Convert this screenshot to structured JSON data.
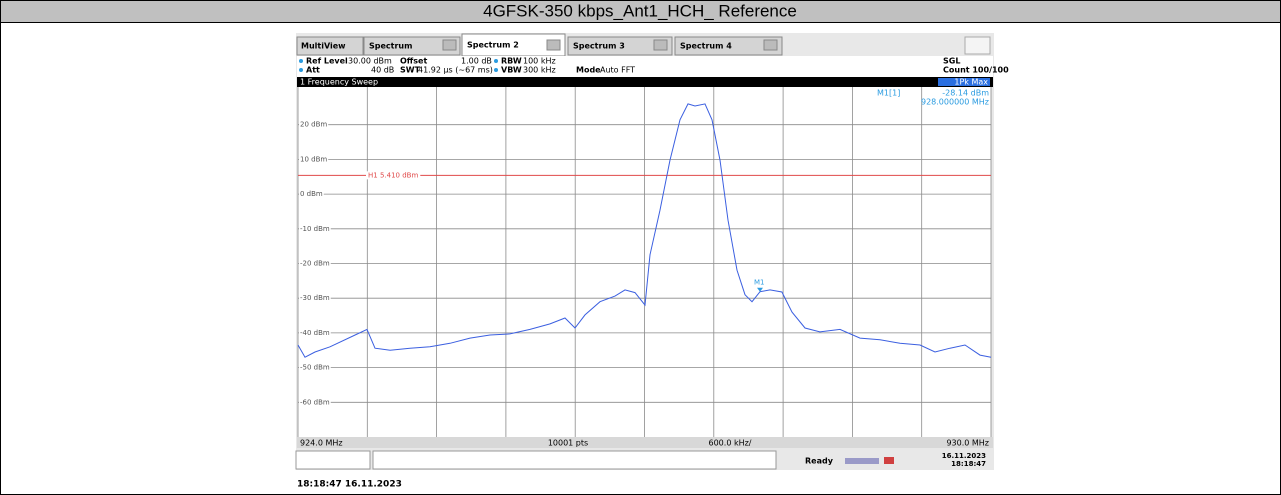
{
  "header": {
    "title": "4GFSK-350 kbps_Ant1_HCH_ Reference"
  },
  "tabs": [
    "MultiView",
    "Spectrum",
    "Spectrum 2",
    "Spectrum 3",
    "Spectrum 4"
  ],
  "settings": {
    "ref_level_label": "Ref Level",
    "ref_level": "30.00 dBm",
    "offset_label": "Offset",
    "offset": "1.00 dB",
    "rbw_label": "RBW",
    "rbw": "100 kHz",
    "sweep_mode": "SGL",
    "att_label": "Att",
    "att": "40 dB",
    "swt_label": "SWT",
    "swt": "41.92 µs (~67 ms)",
    "vbw_label": "VBW",
    "vbw": "300 kHz",
    "mode_label": "Mode",
    "mode": "Auto FFT",
    "count": "Count 100/100"
  },
  "window_title": "1 Frequency Sweep",
  "trace_label": "1Pk Max",
  "footer": {
    "points": "10001 pts",
    "span_per_div": "600.0 kHz/"
  },
  "status": {
    "state": "Ready",
    "date": "16.11.2023",
    "time": "18:18:47"
  },
  "timestamp": "18:18:47  16.11.2023",
  "chart_data": {
    "type": "line",
    "xlim": [
      924,
      930
    ],
    "ylim": [
      -70,
      30
    ],
    "xticks": [
      {
        "value": 924,
        "label": "924.0 MHz"
      },
      924.6,
      925.2,
      925.8,
      926.4,
      927,
      927.6,
      928.2,
      928.8,
      929.4,
      {
        "value": 930,
        "label": "930.0 MHz"
      }
    ],
    "yticks": [
      {
        "value": 20,
        "label": "20 dBm"
      },
      {
        "value": 10,
        "label": "10 dBm"
      },
      {
        "value": 0,
        "label": "0 dBm"
      },
      {
        "value": -10,
        "label": "-10 dBm"
      },
      {
        "value": -20,
        "label": "-20 dBm"
      },
      {
        "value": -30,
        "label": "-30 dBm"
      },
      {
        "value": -40,
        "label": "-40 dBm"
      },
      {
        "value": -50,
        "label": "-50 dBm"
      },
      {
        "value": -60,
        "label": "-60 dBm"
      }
    ],
    "grid": true,
    "threshold": {
      "label": "H1 5.410 dBm",
      "value": 5.41,
      "color": "#e04a4a"
    },
    "marker": {
      "name": "M1",
      "readout_name": "M1[1]",
      "x": 928,
      "y": -28.14,
      "x_label": "928.000000 MHz",
      "y_label": "-28.14 dBm",
      "color": "#2a9be0"
    },
    "series": [
      {
        "name": "1Pk Max",
        "color": "#3b5fe0",
        "x": [
          924.0,
          924.061,
          924.147,
          924.277,
          924.494,
          924.597,
          924.667,
          924.797,
          924.97,
          925.143,
          925.316,
          925.489,
          925.662,
          925.835,
          926.009,
          926.182,
          926.312,
          926.398,
          926.485,
          926.615,
          926.745,
          926.831,
          926.918,
          927.004,
          927.048,
          927.134,
          927.221,
          927.307,
          927.377,
          927.437,
          927.524,
          927.584,
          927.654,
          927.723,
          927.801,
          927.87,
          927.931,
          928.0,
          928.087,
          928.19,
          928.277,
          928.39,
          928.519,
          928.693,
          928.866,
          929.039,
          929.212,
          929.385,
          929.515,
          929.645,
          929.775,
          929.905,
          930.0
        ],
        "values": [
          -43.5,
          -47,
          -45.5,
          -44,
          -40.6,
          -39,
          -44.4,
          -45,
          -44.4,
          -44,
          -43,
          -41.5,
          -40.6,
          -40.3,
          -39,
          -37.4,
          -35.7,
          -38.6,
          -34.8,
          -31,
          -29.4,
          -27.6,
          -28.4,
          -32,
          -17.5,
          -4.6,
          9.8,
          21.4,
          26,
          25.4,
          26,
          21.4,
          9.8,
          -7.5,
          -21.9,
          -29,
          -31,
          -28.14,
          -27.6,
          -28.2,
          -34,
          -38.6,
          -39.7,
          -39,
          -41.5,
          -42,
          -43,
          -43.5,
          -45.5,
          -44.4,
          -43.5,
          -46.4,
          -47
        ]
      }
    ]
  }
}
